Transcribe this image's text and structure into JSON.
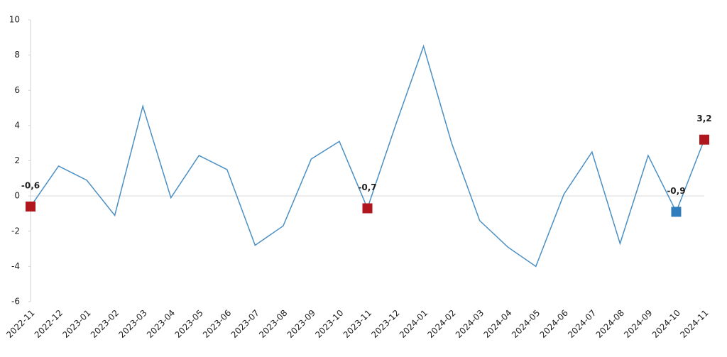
{
  "chart_data": {
    "type": "line",
    "categories": [
      "2022-11",
      "2022-12",
      "2023-01",
      "2023-02",
      "2023-03",
      "2023-04",
      "2023-05",
      "2023-06",
      "2023-07",
      "2023-08",
      "2023-09",
      "2023-10",
      "2023-11",
      "2023-12",
      "2024-01",
      "2024-02",
      "2024-03",
      "2024-04",
      "2024-05",
      "2024-06",
      "2024-07",
      "2024-08",
      "2024-09",
      "2024-10",
      "2024-11"
    ],
    "values": [
      -0.6,
      1.7,
      0.9,
      -1.1,
      5.1,
      -0.1,
      2.3,
      1.5,
      -2.8,
      -1.7,
      2.1,
      3.1,
      -0.7,
      4.0,
      8.5,
      3.0,
      -1.4,
      -2.9,
      -4.0,
      0.1,
      2.5,
      -2.7,
      2.3,
      -0.9,
      3.2
    ],
    "value_labels": [
      "-0,6",
      null,
      null,
      null,
      null,
      null,
      null,
      null,
      null,
      null,
      null,
      null,
      "-0,7",
      null,
      null,
      null,
      null,
      null,
      null,
      null,
      null,
      null,
      null,
      "-0,9",
      "3,2"
    ],
    "marker_colors": [
      "#b0161e",
      null,
      null,
      null,
      null,
      null,
      null,
      null,
      null,
      null,
      null,
      null,
      "#b0161e",
      null,
      null,
      null,
      null,
      null,
      null,
      null,
      null,
      null,
      null,
      "#2f7dbd",
      "#b0161e"
    ],
    "color": "#4a8fc4",
    "ylim": [
      -6,
      10
    ],
    "yticks": [
      -6,
      -4,
      -2,
      0,
      2,
      4,
      6,
      8,
      10
    ]
  }
}
